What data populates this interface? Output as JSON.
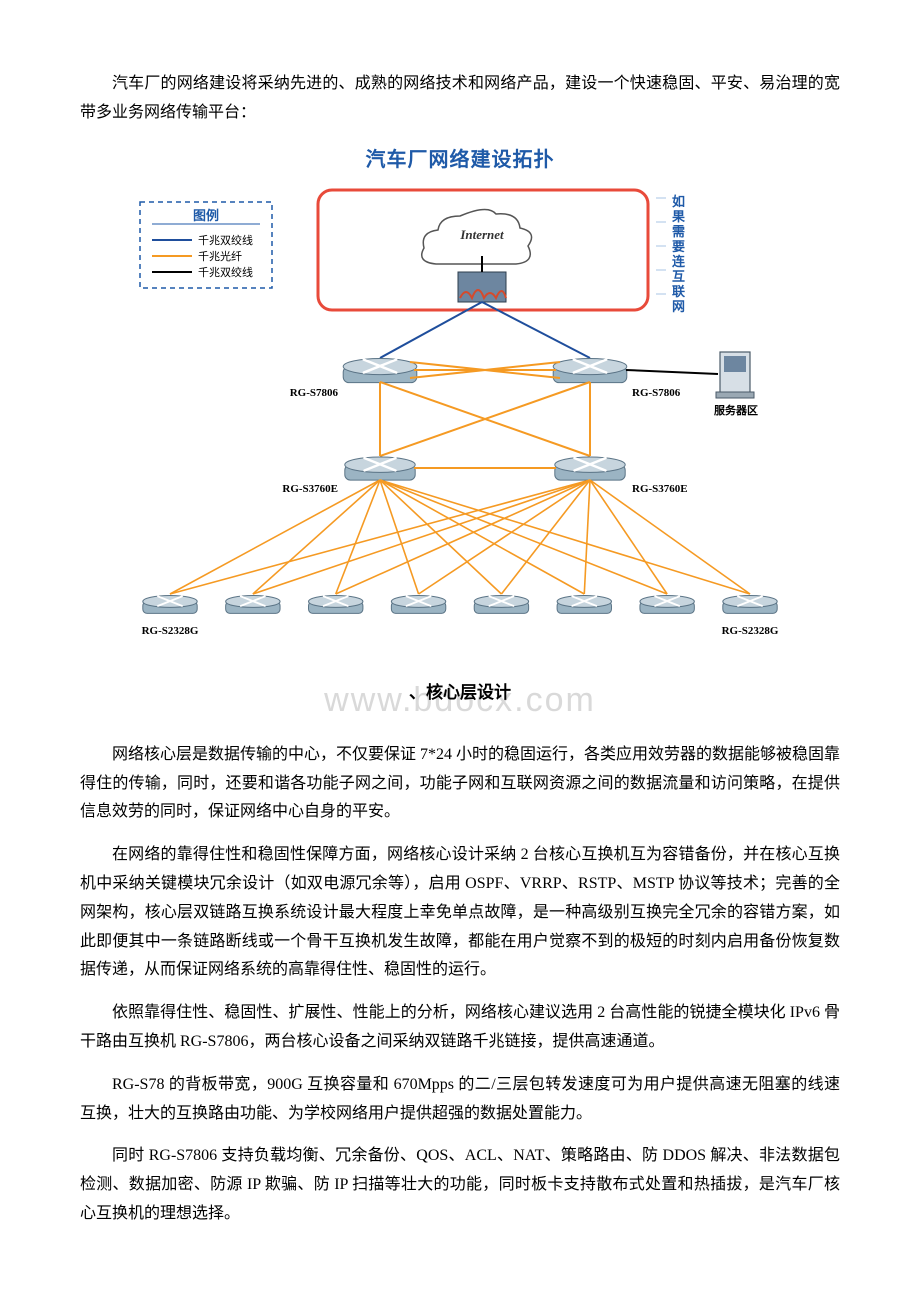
{
  "intro": "汽车厂的网络建设将采纳先进的、成熟的网络技术和网络产品，建设一个快速稳固、平安、易治理的宽带多业务网络传输平台：",
  "diagram": {
    "title": "汽车厂网络建设拓扑",
    "legend_title": "图例",
    "legend": [
      {
        "label": "千兆双绞线",
        "color": "#1f4e9c"
      },
      {
        "label": "千兆光纤",
        "color": "#f59a23"
      },
      {
        "label": "千兆双绞线",
        "color": "#000000"
      }
    ],
    "internet_label": "Internet",
    "internet_note": "如果需要连互联网",
    "core_label": "RG-S7806",
    "agg_label": "RG-S3760E",
    "access_label": "RG-S2328G",
    "server_label": "服务器区",
    "colors": {
      "title": "#1f5aa8",
      "box_border": "#e84a3a",
      "note_text": "#1f5aa8",
      "note_rule": "#a8c4e6",
      "legend_border": "#1f5aa8",
      "device_fill": "#9bb4c3",
      "device_stroke": "#5b7486",
      "firewall_fill": "#6d86a0",
      "firewall_accent": "#d54a2c",
      "line_blue": "#1f4e9c",
      "line_orange": "#f59a23",
      "line_black": "#000000"
    },
    "access_count": 8
  },
  "watermark": "www.bdocx.com",
  "section_heading": "、核心层设计",
  "p1": "网络核心层是数据传输的中心，不仅要保证 7*24 小时的稳固运行，各类应用效劳器的数据能够被稳固靠得住的传输，同时，还要和谐各功能子网之间，功能子网和互联网资源之间的数据流量和访问策略，在提供信息效劳的同时，保证网络中心自身的平安。",
  "p2": "在网络的靠得住性和稳固性保障方面，网络核心设计采纳 2 台核心互换机互为容错备份，并在核心互换机中采纳关键模块冗余设计（如双电源冗余等），启用 OSPF、VRRP、RSTP、MSTP 协议等技术；完善的全网架构，核心层双链路互换系统设计最大程度上幸免单点故障，是一种高级别互换完全冗余的容错方案，如此即便其中一条链路断线或一个骨干互换机发生故障，都能在用户觉察不到的极短的时刻内启用备份恢复数据传递，从而保证网络系统的高靠得住性、稳固性的运行。",
  "p3": "依照靠得住性、稳固性、扩展性、性能上的分析，网络核心建议选用 2 台高性能的锐捷全模块化 IPv6 骨干路由互换机 RG-S7806，两台核心设备之间采纳双链路千兆链接，提供高速通道。",
  "p4": "RG-S78 的背板带宽，900G 互换容量和 670Mpps 的二/三层包转发速度可为用户提供高速无阻塞的线速互换，壮大的互换路由功能、为学校网络用户提供超强的数据处置能力。",
  "p5": "同时 RG-S7806 支持负载均衡、冗余备份、QOS、ACL、NAT、策略路由、防 DDOS 解决、非法数据包检测、数据加密、防源 IP 欺骗、防 IP 扫描等壮大的功能，同时板卡支持散布式处置和热插拔，是汽车厂核心互换机的理想选择。"
}
